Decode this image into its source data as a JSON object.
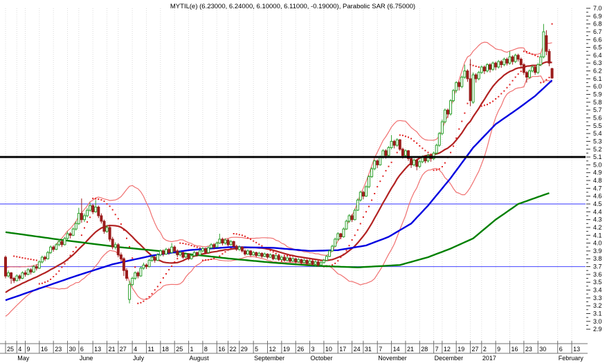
{
  "chart_data": {
    "type": "candlestick",
    "title": "MYTIL(e) (6.23000, 6.24000, 6.10000, 6.11000, -0.19000), Parabolic SAR (6.75000)",
    "symbol": "MYTIL(e)",
    "quote": {
      "open": 6.23,
      "high": 6.24,
      "low": 6.1,
      "close": 6.11,
      "change": -0.19
    },
    "parabolic_sar_value": 6.75,
    "y_axis": {
      "min": 2.9,
      "max": 7.0,
      "tick_step": 0.1,
      "minor_step": 0.05,
      "side": "right"
    },
    "x_axis": {
      "ticks": [
        [
          0,
          "25"
        ],
        [
          4,
          "4"
        ],
        [
          7,
          "9"
        ],
        [
          12,
          "16"
        ],
        [
          17,
          "23"
        ],
        [
          22,
          "30"
        ],
        [
          26,
          "6"
        ],
        [
          31,
          "13"
        ],
        [
          36,
          "21"
        ],
        [
          40,
          "27"
        ],
        [
          45,
          "4"
        ],
        [
          50,
          "11"
        ],
        [
          55,
          "18"
        ],
        [
          60,
          "25"
        ],
        [
          65,
          "1"
        ],
        [
          70,
          "8"
        ],
        [
          75,
          "16"
        ],
        [
          79,
          "22"
        ],
        [
          83,
          "29"
        ],
        [
          88,
          "5"
        ],
        [
          93,
          "12"
        ],
        [
          98,
          "19"
        ],
        [
          103,
          "26"
        ],
        [
          108,
          "3"
        ],
        [
          113,
          "10"
        ],
        [
          118,
          "17"
        ],
        [
          123,
          "24"
        ],
        [
          127,
          "31"
        ],
        [
          132,
          "7"
        ],
        [
          137,
          "14"
        ],
        [
          142,
          "21"
        ],
        [
          147,
          "28"
        ],
        [
          152,
          "7"
        ],
        [
          155,
          "12"
        ],
        [
          160,
          "19"
        ],
        [
          165,
          "27"
        ],
        [
          169,
          "2"
        ],
        [
          174,
          "9"
        ],
        [
          179,
          "16"
        ],
        [
          184,
          "23"
        ],
        [
          189,
          "30"
        ],
        [
          196,
          "6"
        ],
        [
          201,
          "13"
        ]
      ],
      "months": [
        [
          4,
          "May"
        ],
        [
          26,
          "June"
        ],
        [
          45,
          "July"
        ],
        [
          65,
          "August"
        ],
        [
          88,
          "September"
        ],
        [
          108,
          "October"
        ],
        [
          132,
          "November"
        ],
        [
          152,
          "December"
        ],
        [
          169,
          "2017"
        ],
        [
          196,
          "February"
        ]
      ]
    },
    "hlines": [
      {
        "price": 5.1,
        "color": "#000000",
        "width": 2.8,
        "name": "resistance-line"
      },
      {
        "price": 4.5,
        "color": "#5a5aff",
        "width": 1.2,
        "name": "upper-support-line"
      },
      {
        "price": 3.7,
        "color": "#5a5aff",
        "width": 1.2,
        "name": "lower-support-line"
      }
    ],
    "grid": {
      "vertical_weekly": true,
      "color": "#d9d9d9"
    },
    "indicators": {
      "bollinger": {
        "period": 20,
        "stdev_mult": 2
      },
      "psar_params": {
        "step": 0.02,
        "max": 0.2
      }
    },
    "ma50_anchors": [
      [
        0,
        3.27
      ],
      [
        12,
        3.42
      ],
      [
        25,
        3.58
      ],
      [
        38,
        3.73
      ],
      [
        52,
        3.84
      ],
      [
        65,
        3.91
      ],
      [
        80,
        3.95
      ],
      [
        95,
        3.94
      ],
      [
        108,
        3.9
      ],
      [
        118,
        3.91
      ],
      [
        128,
        3.97
      ],
      [
        136,
        4.08
      ],
      [
        144,
        4.25
      ],
      [
        150,
        4.48
      ],
      [
        158,
        4.83
      ],
      [
        166,
        5.22
      ],
      [
        174,
        5.52
      ],
      [
        182,
        5.72
      ],
      [
        188,
        5.88
      ],
      [
        194,
        6.08
      ]
    ],
    "ma200_anchors": [
      [
        0,
        4.14
      ],
      [
        20,
        4.04
      ],
      [
        40,
        3.95
      ],
      [
        60,
        3.88
      ],
      [
        80,
        3.8
      ],
      [
        95,
        3.75
      ],
      [
        110,
        3.71
      ],
      [
        125,
        3.69
      ],
      [
        140,
        3.72
      ],
      [
        150,
        3.82
      ],
      [
        158,
        3.93
      ],
      [
        166,
        4.06
      ],
      [
        174,
        4.3
      ],
      [
        182,
        4.5
      ],
      [
        193,
        4.64
      ]
    ],
    "candles_ohlc": [
      [
        3.82,
        3.84,
        3.55,
        3.58
      ],
      [
        3.58,
        3.65,
        3.56,
        3.62
      ],
      [
        3.62,
        3.63,
        3.48,
        3.55
      ],
      [
        3.55,
        3.57,
        3.49,
        3.52
      ],
      [
        3.52,
        3.6,
        3.51,
        3.58
      ],
      [
        3.58,
        3.6,
        3.52,
        3.55
      ],
      [
        3.55,
        3.64,
        3.54,
        3.62
      ],
      [
        3.62,
        3.65,
        3.57,
        3.6
      ],
      [
        3.6,
        3.68,
        3.59,
        3.66
      ],
      [
        3.66,
        3.68,
        3.6,
        3.63
      ],
      [
        3.63,
        3.72,
        3.62,
        3.7
      ],
      [
        3.7,
        3.73,
        3.65,
        3.68
      ],
      [
        3.68,
        3.78,
        3.67,
        3.76
      ],
      [
        3.76,
        3.84,
        3.74,
        3.82
      ],
      [
        3.82,
        3.84,
        3.77,
        3.8
      ],
      [
        3.8,
        3.9,
        3.79,
        3.88
      ],
      [
        3.88,
        3.97,
        3.86,
        3.95
      ],
      [
        3.95,
        3.97,
        3.89,
        3.92
      ],
      [
        3.92,
        4.0,
        3.91,
        3.98
      ],
      [
        3.98,
        4.05,
        3.96,
        4.02
      ],
      [
        4.02,
        4.04,
        3.95,
        3.98
      ],
      [
        3.98,
        4.08,
        3.97,
        4.06
      ],
      [
        4.06,
        4.15,
        4.04,
        4.12
      ],
      [
        4.12,
        4.14,
        4.06,
        4.1
      ],
      [
        4.1,
        4.2,
        4.09,
        4.18
      ],
      [
        4.18,
        4.28,
        4.16,
        4.25
      ],
      [
        4.25,
        4.45,
        4.23,
        4.38
      ],
      [
        4.38,
        4.57,
        4.26,
        4.3
      ],
      [
        4.3,
        4.38,
        4.27,
        4.35
      ],
      [
        4.35,
        4.45,
        4.33,
        4.42
      ],
      [
        4.42,
        4.52,
        4.4,
        4.48
      ],
      [
        4.48,
        4.5,
        4.37,
        4.4
      ],
      [
        4.4,
        4.55,
        4.39,
        4.46
      ],
      [
        4.46,
        4.48,
        4.32,
        4.35
      ],
      [
        4.35,
        4.38,
        4.25,
        4.28
      ],
      [
        4.28,
        4.3,
        4.12,
        4.15
      ],
      [
        4.15,
        4.23,
        4.13,
        4.2
      ],
      [
        4.2,
        4.22,
        4.02,
        4.05
      ],
      [
        4.05,
        4.08,
        3.92,
        3.95
      ],
      [
        3.95,
        4.01,
        3.92,
        3.98
      ],
      [
        3.98,
        4.0,
        3.82,
        3.85
      ],
      [
        3.85,
        3.88,
        3.77,
        3.8
      ],
      [
        3.8,
        3.82,
        3.58,
        3.65
      ],
      [
        3.65,
        3.68,
        3.52,
        3.55
      ],
      [
        3.28,
        3.52,
        3.23,
        3.47
      ],
      [
        3.47,
        3.57,
        3.45,
        3.55
      ],
      [
        3.55,
        3.64,
        3.53,
        3.62
      ],
      [
        3.62,
        3.64,
        3.55,
        3.58
      ],
      [
        3.58,
        3.7,
        3.57,
        3.68
      ],
      [
        3.68,
        3.75,
        3.66,
        3.72
      ],
      [
        3.72,
        3.74,
        3.67,
        3.7
      ],
      [
        3.7,
        3.8,
        3.69,
        3.78
      ],
      [
        3.78,
        3.84,
        3.76,
        3.82
      ],
      [
        3.82,
        3.84,
        3.75,
        3.78
      ],
      [
        3.78,
        3.87,
        3.77,
        3.85
      ],
      [
        3.85,
        3.92,
        3.83,
        3.9
      ],
      [
        3.9,
        3.92,
        3.83,
        3.86
      ],
      [
        3.86,
        3.94,
        3.85,
        3.92
      ],
      [
        3.92,
        3.94,
        3.85,
        3.88
      ],
      [
        3.88,
        4.0,
        3.87,
        3.95
      ],
      [
        3.95,
        3.97,
        3.88,
        3.9
      ],
      [
        3.9,
        3.92,
        3.82,
        3.85
      ],
      [
        3.85,
        3.9,
        3.83,
        3.88
      ],
      [
        3.88,
        3.89,
        3.8,
        3.82
      ],
      [
        3.82,
        3.88,
        3.81,
        3.86
      ],
      [
        3.86,
        3.87,
        3.78,
        3.8
      ],
      [
        3.8,
        3.86,
        3.79,
        3.84
      ],
      [
        3.84,
        3.9,
        3.83,
        3.88
      ],
      [
        3.88,
        3.89,
        3.83,
        3.85
      ],
      [
        3.85,
        3.92,
        3.84,
        3.9
      ],
      [
        3.9,
        3.95,
        3.88,
        3.93
      ],
      [
        3.93,
        3.94,
        3.86,
        3.88
      ],
      [
        3.88,
        3.96,
        3.87,
        3.94
      ],
      [
        3.94,
        4.0,
        3.92,
        3.98
      ],
      [
        3.98,
        4.0,
        3.92,
        3.95
      ],
      [
        3.95,
        4.02,
        3.94,
        4.0
      ],
      [
        4.0,
        4.12,
        3.99,
        4.05
      ],
      [
        4.05,
        4.07,
        3.97,
        4.0
      ],
      [
        4.0,
        4.06,
        3.98,
        4.04
      ],
      [
        4.04,
        4.06,
        3.96,
        3.98
      ],
      [
        3.98,
        4.04,
        3.97,
        4.02
      ],
      [
        4.02,
        4.03,
        3.94,
        3.96
      ],
      [
        3.96,
        3.98,
        3.9,
        3.92
      ],
      [
        3.92,
        3.97,
        3.9,
        3.95
      ],
      [
        3.95,
        3.96,
        3.88,
        3.9
      ],
      [
        3.9,
        3.92,
        3.84,
        3.86
      ],
      [
        3.86,
        3.92,
        3.85,
        3.9
      ],
      [
        3.9,
        3.91,
        3.83,
        3.85
      ],
      [
        3.85,
        3.9,
        3.84,
        3.88
      ],
      [
        3.88,
        3.89,
        3.82,
        3.84
      ],
      [
        3.84,
        3.89,
        3.83,
        3.87
      ],
      [
        3.87,
        3.88,
        3.81,
        3.83
      ],
      [
        3.83,
        3.88,
        3.82,
        3.86
      ],
      [
        3.86,
        3.87,
        3.8,
        3.82
      ],
      [
        3.82,
        3.87,
        3.81,
        3.85
      ],
      [
        3.85,
        3.86,
        3.78,
        3.8
      ],
      [
        3.8,
        3.86,
        3.79,
        3.84
      ],
      [
        3.84,
        3.85,
        3.77,
        3.79
      ],
      [
        3.79,
        3.84,
        3.78,
        3.82
      ],
      [
        3.82,
        3.83,
        3.76,
        3.78
      ],
      [
        3.78,
        3.83,
        3.77,
        3.81
      ],
      [
        3.81,
        3.82,
        3.75,
        3.77
      ],
      [
        3.77,
        3.82,
        3.76,
        3.8
      ],
      [
        3.8,
        3.81,
        3.74,
        3.76
      ],
      [
        3.76,
        3.81,
        3.75,
        3.79
      ],
      [
        3.79,
        3.8,
        3.73,
        3.75
      ],
      [
        3.75,
        3.8,
        3.74,
        3.78
      ],
      [
        3.78,
        3.79,
        3.72,
        3.74
      ],
      [
        3.74,
        3.79,
        3.73,
        3.77
      ],
      [
        3.77,
        3.78,
        3.71,
        3.73
      ],
      [
        3.73,
        3.78,
        3.7,
        3.76
      ],
      [
        3.76,
        3.77,
        3.7,
        3.72
      ],
      [
        3.72,
        3.77,
        3.71,
        3.75
      ],
      [
        3.75,
        3.8,
        3.74,
        3.78
      ],
      [
        3.78,
        3.85,
        3.77,
        3.83
      ],
      [
        3.83,
        3.92,
        3.82,
        3.9
      ],
      [
        3.9,
        3.98,
        3.89,
        3.96
      ],
      [
        3.96,
        4.07,
        3.95,
        4.05
      ],
      [
        4.05,
        4.14,
        4.03,
        4.12
      ],
      [
        4.12,
        4.13,
        4.05,
        4.08
      ],
      [
        4.08,
        4.2,
        4.07,
        4.18
      ],
      [
        4.18,
        4.3,
        4.17,
        4.28
      ],
      [
        4.28,
        4.37,
        4.26,
        4.35
      ],
      [
        4.35,
        4.37,
        4.27,
        4.3
      ],
      [
        4.3,
        4.44,
        4.29,
        4.42
      ],
      [
        4.42,
        4.57,
        4.41,
        4.55
      ],
      [
        4.55,
        4.67,
        4.53,
        4.65
      ],
      [
        4.65,
        4.67,
        4.56,
        4.6
      ],
      [
        4.6,
        4.74,
        4.59,
        4.72
      ],
      [
        4.72,
        4.87,
        4.7,
        4.85
      ],
      [
        4.85,
        4.97,
        4.83,
        4.95
      ],
      [
        4.95,
        5.07,
        4.93,
        5.05
      ],
      [
        5.05,
        5.07,
        4.96,
        5.0
      ],
      [
        5.0,
        5.12,
        4.99,
        5.1
      ],
      [
        5.1,
        5.2,
        5.08,
        5.18
      ],
      [
        5.18,
        5.2,
        5.08,
        5.12
      ],
      [
        5.12,
        5.24,
        5.11,
        5.22
      ],
      [
        5.22,
        5.38,
        5.2,
        5.3
      ],
      [
        5.3,
        5.32,
        5.21,
        5.25
      ],
      [
        5.25,
        5.34,
        5.23,
        5.32
      ],
      [
        5.32,
        5.33,
        5.18,
        5.2
      ],
      [
        5.2,
        5.22,
        5.08,
        5.12
      ],
      [
        5.12,
        5.2,
        5.1,
        5.18
      ],
      [
        5.18,
        5.19,
        5.05,
        5.08
      ],
      [
        5.08,
        5.1,
        4.96,
        5.0
      ],
      [
        5.0,
        5.08,
        4.98,
        5.06
      ],
      [
        5.06,
        5.07,
        4.93,
        4.98
      ],
      [
        4.98,
        5.06,
        4.96,
        5.04
      ],
      [
        5.04,
        5.12,
        5.02,
        5.1
      ],
      [
        5.1,
        5.11,
        5.02,
        5.05
      ],
      [
        5.05,
        5.14,
        5.03,
        5.12
      ],
      [
        5.12,
        5.13,
        5.04,
        5.08
      ],
      [
        5.08,
        5.17,
        5.06,
        5.15
      ],
      [
        5.15,
        5.27,
        5.13,
        5.25
      ],
      [
        5.25,
        5.42,
        5.23,
        5.4
      ],
      [
        5.4,
        5.58,
        5.38,
        5.55
      ],
      [
        5.55,
        5.72,
        5.53,
        5.7
      ],
      [
        5.7,
        5.72,
        5.6,
        5.65
      ],
      [
        5.65,
        5.84,
        5.63,
        5.82
      ],
      [
        5.82,
        5.97,
        5.8,
        5.95
      ],
      [
        5.95,
        6.07,
        5.92,
        6.05
      ],
      [
        6.05,
        6.07,
        5.95,
        6.0
      ],
      [
        6.0,
        6.14,
        5.98,
        6.12
      ],
      [
        6.12,
        6.28,
        6.1,
        6.2
      ],
      [
        6.2,
        6.22,
        6.06,
        6.1
      ],
      [
        6.1,
        6.35,
        5.75,
        5.82
      ],
      [
        5.8,
        6.18,
        5.78,
        6.15
      ],
      [
        6.15,
        6.17,
        6.05,
        6.1
      ],
      [
        6.1,
        6.2,
        6.08,
        6.18
      ],
      [
        6.18,
        6.27,
        6.16,
        6.25
      ],
      [
        6.25,
        6.27,
        6.16,
        6.2
      ],
      [
        6.2,
        6.3,
        6.18,
        6.28
      ],
      [
        6.28,
        6.3,
        6.18,
        6.22
      ],
      [
        6.22,
        6.32,
        6.2,
        6.3
      ],
      [
        6.3,
        6.32,
        6.21,
        6.25
      ],
      [
        6.25,
        6.34,
        6.23,
        6.32
      ],
      [
        6.32,
        6.34,
        6.24,
        6.28
      ],
      [
        6.28,
        6.37,
        6.26,
        6.35
      ],
      [
        6.35,
        6.37,
        6.27,
        6.3
      ],
      [
        6.3,
        6.45,
        6.28,
        6.38
      ],
      [
        6.38,
        6.4,
        6.28,
        6.32
      ],
      [
        6.32,
        6.42,
        6.3,
        6.4
      ],
      [
        6.4,
        6.42,
        6.32,
        6.35
      ],
      [
        6.35,
        6.37,
        6.25,
        6.28
      ],
      [
        6.28,
        6.3,
        6.15,
        6.18
      ],
      [
        6.18,
        6.2,
        6.05,
        6.12
      ],
      [
        6.12,
        6.22,
        6.1,
        6.2
      ],
      [
        6.2,
        6.27,
        6.18,
        6.25
      ],
      [
        6.25,
        6.26,
        6.15,
        6.18
      ],
      [
        6.18,
        6.3,
        6.16,
        6.28
      ],
      [
        6.28,
        6.42,
        6.26,
        6.38
      ],
      [
        6.38,
        6.8,
        6.36,
        6.7
      ],
      [
        6.65,
        6.72,
        6.4,
        6.45
      ],
      [
        6.45,
        6.48,
        6.26,
        6.3
      ],
      [
        6.23,
        6.24,
        6.1,
        6.11
      ]
    ],
    "colors": {
      "background": "#ffffff",
      "up_candle": "#2da12d",
      "down_candle": "#9b1c1c",
      "bollinger_band": "#f07070",
      "bollinger_mid": "#b22222",
      "ma50": "#0000e0",
      "ma200": "#008000",
      "psar_dot": "#e02020",
      "grid": "#d9d9d9",
      "axis_text": "#000000",
      "axis_line": "#707070"
    }
  }
}
